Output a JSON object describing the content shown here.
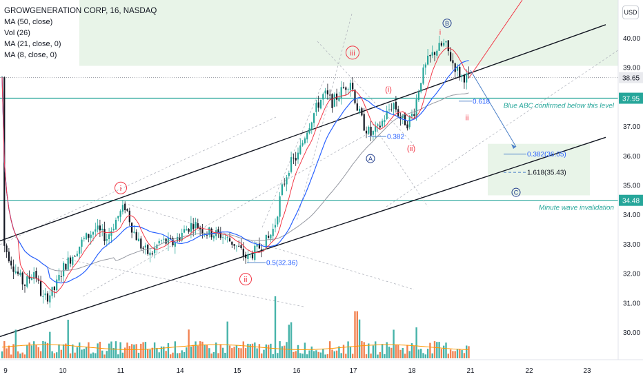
{
  "legend": {
    "title": "GROWGENERATION CORP, 16, NASDAQ",
    "ind1": "MA (50, close)",
    "ind2": "Vol (26)",
    "ind3": "MA (21, close, 0)",
    "ind4": "MA (8, close, 0)"
  },
  "currency": "USD",
  "colors": {
    "up": "#26a69a",
    "down": "#131722",
    "vol_up": "#26a69a",
    "vol_down": "#ef6c33",
    "ma8": "#f23645",
    "ma21": "#2962ff",
    "ma50": "#9598a1",
    "level": "#26a69a",
    "wave_red": "#f23645",
    "wave_blue": "#2962ff",
    "zone": "#e8f4e8"
  },
  "chart_data": {
    "type": "candlestick",
    "title": "GROWGENERATION CORP, 16, NASDAQ",
    "ylim": [
      29.5,
      41.2
    ],
    "y_ticks": [
      "30.00",
      "31.00",
      "32.00",
      "33.00",
      "34.00",
      "35.00",
      "36.00",
      "37.00",
      "38.00",
      "39.00",
      "40.00"
    ],
    "x_ticks": [
      "9",
      "10",
      "11",
      "14",
      "15",
      "16",
      "17",
      "18",
      "21",
      "22",
      "23"
    ],
    "levels": [
      {
        "price": 37.95,
        "label": "37.95",
        "note": "Blue ABC confirmed below this level"
      },
      {
        "price": 34.48,
        "label": "34.48",
        "note": "Minute wave invalidation"
      }
    ],
    "last_price": {
      "price": 38.65,
      "label": "38.65"
    },
    "fib_labels": [
      {
        "text": "0.5(32.36)",
        "price": 32.36
      },
      {
        "text": "0.382",
        "price": 36.65
      },
      {
        "text": "0.618",
        "price": 37.85
      },
      {
        "text": "0.382(36.05)",
        "price": 36.05
      },
      {
        "text": "1.618(35.43)",
        "price": 35.43
      }
    ],
    "wave_labels": [
      {
        "text": "i",
        "circled": true,
        "color": "red",
        "price": 34.9
      },
      {
        "text": "ii",
        "circled": true,
        "color": "red",
        "price": 31.8
      },
      {
        "text": "iii",
        "circled": true,
        "color": "red",
        "price": 39.5
      },
      {
        "text": "(i)",
        "circled": false,
        "color": "red",
        "price": 38.25
      },
      {
        "text": "(ii)",
        "circled": false,
        "color": "red",
        "price": 36.25
      },
      {
        "text": "i",
        "circled": false,
        "color": "red",
        "price": 40.2
      },
      {
        "text": "ii",
        "circled": false,
        "color": "red",
        "price": 37.3
      },
      {
        "text": "A",
        "circled": true,
        "color": "blue",
        "price": 35.9
      },
      {
        "text": "B",
        "circled": true,
        "color": "blue",
        "price": 40.5
      },
      {
        "text": "C",
        "circled": true,
        "color": "blue",
        "price": 34.75
      }
    ]
  }
}
